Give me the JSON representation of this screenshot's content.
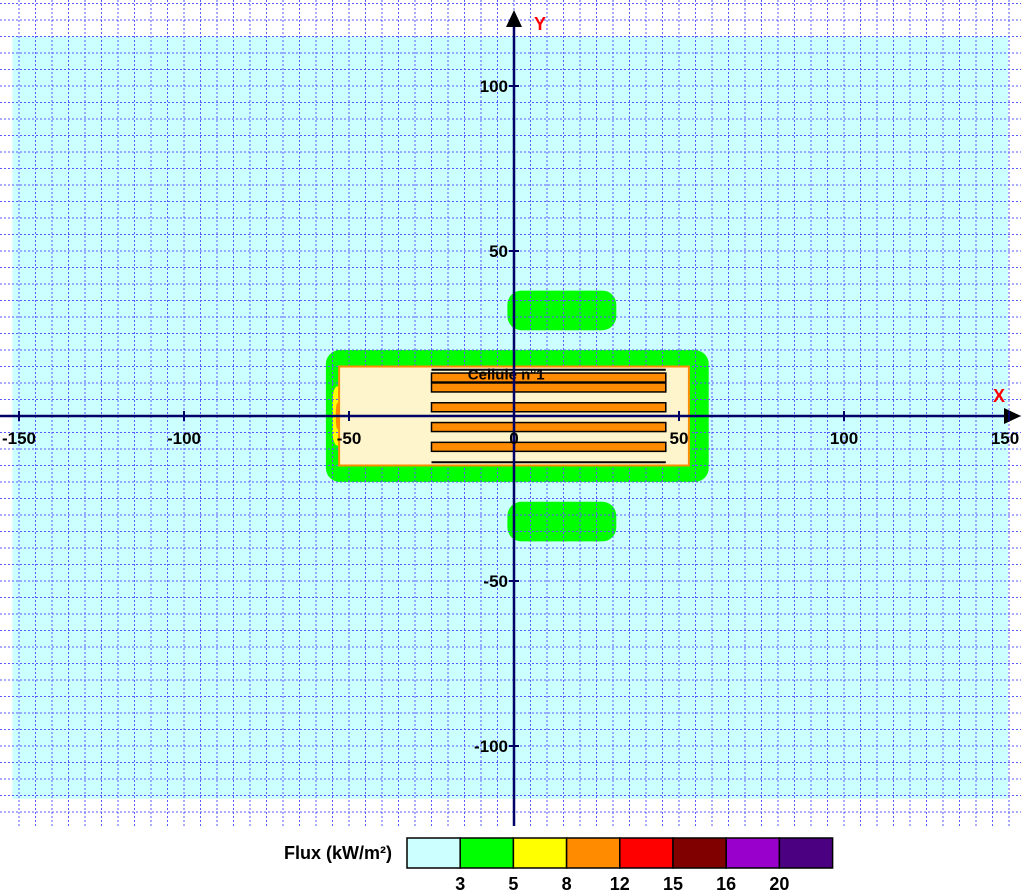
{
  "chart_data": {
    "type": "heatmap",
    "xlabel": "X",
    "ylabel": "Y",
    "xlim": [
      -150,
      150
    ],
    "ylim": [
      -120,
      120
    ],
    "x_ticks": [
      -150,
      -100,
      -50,
      0,
      50,
      100,
      150
    ],
    "x_tick_labels": [
      "-150",
      "-100",
      "-50",
      "0",
      "50",
      "100",
      "150"
    ],
    "y_ticks": [
      100,
      50,
      -50,
      -100
    ],
    "y_tick_labels": [
      "100",
      "50",
      "-50",
      "-100"
    ],
    "grid": true,
    "grid_step": 5,
    "cell": {
      "label": "Cellule n°1",
      "x_range": [
        -53,
        53
      ],
      "y_range": [
        -15,
        15
      ]
    },
    "legend": {
      "title": "Flux (kW/m²)",
      "placement": "bottom-center",
      "thresholds": [
        "3",
        "5",
        "8",
        "12",
        "15",
        "16",
        "20"
      ],
      "colors": [
        "#ccffff",
        "#00ff00",
        "#ffff00",
        "#ff8c00",
        "#ff0000",
        "#800000",
        "#9900cc",
        "#4b0082"
      ]
    },
    "zones": [
      {
        "level": "< 3",
        "color": "#ccffff",
        "x_range": [
          -152,
          152
        ],
        "y_range": [
          -116,
          115
        ]
      },
      {
        "level": "3-5",
        "color": "#00ff00",
        "x_range": [
          -57,
          59
        ],
        "y_range": [
          -20,
          20
        ]
      },
      {
        "level": "3-5",
        "color": "#00ff00",
        "x_range": [
          -2,
          31
        ],
        "y_range": [
          26,
          38
        ]
      },
      {
        "level": "3-5",
        "color": "#00ff00",
        "x_range": [
          -2,
          31
        ],
        "y_range": [
          -38,
          -26
        ]
      },
      {
        "level": "5-8",
        "color": "#ffff00",
        "x_range": [
          -55,
          -52
        ],
        "y_range": [
          -9,
          9
        ]
      },
      {
        "level": "8-12",
        "color": "#ff8c00",
        "x_range": [
          -54,
          -53
        ],
        "y_range": [
          -4,
          4
        ]
      }
    ]
  }
}
